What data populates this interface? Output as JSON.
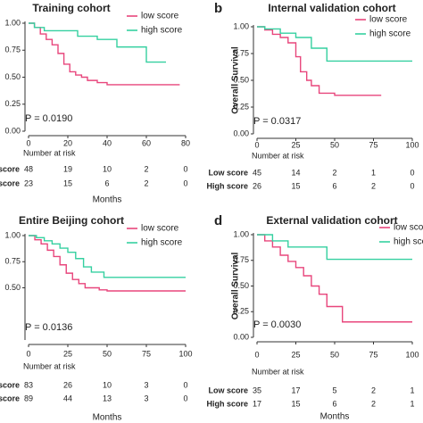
{
  "chart_data": [
    {
      "type": "line",
      "step": true,
      "title": "Training cohort",
      "p_value": "P = 0.0190",
      "xlabel": "Months",
      "xlim": [
        0,
        80
      ],
      "xticks": [
        0,
        20,
        40,
        60,
        80
      ],
      "ylim": [
        0,
        1
      ],
      "yticks": [
        {
          "value": 0,
          "label": "0.00"
        },
        {
          "value": 0.25,
          "label": "0.25"
        },
        {
          "value": 0.5,
          "label": "0.50"
        },
        {
          "value": 0.75,
          "label": "0.75"
        },
        {
          "value": 1,
          "label": "1.00"
        }
      ],
      "series": [
        {
          "name": "low score",
          "color": "#e8467c",
          "x": [
            0,
            3,
            6,
            9,
            12,
            15,
            18,
            21,
            24,
            27,
            30,
            35,
            40,
            77
          ],
          "values": [
            1,
            0.96,
            0.9,
            0.85,
            0.8,
            0.72,
            0.62,
            0.55,
            0.52,
            0.5,
            0.47,
            0.45,
            0.43,
            0.43
          ]
        },
        {
          "name": "high score",
          "color": "#35d0a0",
          "x": [
            0,
            3,
            8,
            25,
            35,
            45,
            60,
            70
          ],
          "values": [
            1,
            0.96,
            0.93,
            0.88,
            0.85,
            0.78,
            0.64,
            0.64
          ]
        }
      ],
      "risk_table": {
        "title": "Number at risk",
        "rows": [
          {
            "name": "Low score",
            "values": [
              48,
              19,
              10,
              2,
              0
            ]
          },
          {
            "name": "High score",
            "values": [
              23,
              15,
              6,
              2,
              0
            ]
          }
        ]
      }
    },
    {
      "type": "line",
      "step": true,
      "label": "b",
      "title": "Internal validation cohort",
      "ylabel": "Overall Survival",
      "p_value": "P = 0.0317",
      "xlim": [
        0,
        100
      ],
      "xticks": [
        0,
        25,
        50,
        75,
        100
      ],
      "ylim": [
        0,
        1
      ],
      "yticks": [
        {
          "value": 0,
          "label": "0.00"
        },
        {
          "value": 0.25,
          "label": "0.25"
        },
        {
          "value": 0.5,
          "label": "0.50"
        },
        {
          "value": 0.75,
          "label": "0.75"
        },
        {
          "value": 1,
          "label": "1.00"
        }
      ],
      "series": [
        {
          "name": "low score",
          "color": "#e8467c",
          "x": [
            0,
            5,
            10,
            15,
            20,
            25,
            28,
            32,
            35,
            40,
            50,
            80
          ],
          "values": [
            1,
            0.97,
            0.93,
            0.9,
            0.85,
            0.72,
            0.58,
            0.5,
            0.45,
            0.38,
            0.36,
            0.36
          ]
        },
        {
          "name": "high score",
          "color": "#35d0a0",
          "x": [
            0,
            5,
            15,
            25,
            35,
            45,
            100
          ],
          "values": [
            1,
            0.98,
            0.94,
            0.9,
            0.8,
            0.68,
            0.68
          ]
        }
      ],
      "risk_table": {
        "title": "Number at risk",
        "rows": [
          {
            "name": "Low score",
            "values": [
              45,
              14,
              2,
              1,
              0
            ]
          },
          {
            "name": "High score",
            "values": [
              26,
              15,
              6,
              2,
              0
            ]
          }
        ]
      }
    },
    {
      "type": "line",
      "step": true,
      "title": "Entire Beijing cohort",
      "p_value": "P = 0.0136",
      "xlabel": "Months",
      "xlim": [
        0,
        100
      ],
      "xticks": [
        0,
        25,
        50,
        75,
        100
      ],
      "ylim": [
        0,
        1
      ],
      "yticks": [
        {
          "value": 0.5,
          "label": "0.50"
        },
        {
          "value": 0.75,
          "label": "0.75"
        },
        {
          "value": 1,
          "label": "1.00"
        }
      ],
      "series": [
        {
          "name": "low score",
          "color": "#e8467c",
          "x": [
            0,
            4,
            8,
            12,
            16,
            20,
            24,
            28,
            32,
            36,
            45,
            50,
            100
          ],
          "values": [
            1,
            0.96,
            0.92,
            0.86,
            0.8,
            0.72,
            0.64,
            0.58,
            0.54,
            0.5,
            0.48,
            0.47,
            0.47
          ]
        },
        {
          "name": "high score",
          "color": "#35d0a0",
          "x": [
            0,
            5,
            10,
            15,
            20,
            25,
            30,
            35,
            40,
            48,
            100
          ],
          "values": [
            1,
            0.98,
            0.95,
            0.92,
            0.88,
            0.84,
            0.78,
            0.7,
            0.65,
            0.6,
            0.6
          ]
        }
      ],
      "risk_table": {
        "title": "Number at risk",
        "rows": [
          {
            "name": "Low score",
            "values": [
              83,
              26,
              10,
              3,
              0
            ]
          },
          {
            "name": "High score",
            "values": [
              89,
              44,
              13,
              3,
              0
            ]
          }
        ]
      }
    },
    {
      "type": "line",
      "step": true,
      "label": "d",
      "title": "External validation cohort",
      "ylabel": "Overall Survival",
      "p_value": "P = 0.0030",
      "xlabel": "Months",
      "xlim": [
        0,
        100
      ],
      "xticks": [
        0,
        25,
        50,
        75,
        100
      ],
      "ylim": [
        0,
        1
      ],
      "yticks": [
        {
          "value": 0,
          "label": "0.00"
        },
        {
          "value": 0.25,
          "label": "0.25"
        },
        {
          "value": 0.5,
          "label": "0.50"
        },
        {
          "value": 0.75,
          "label": "0.75"
        },
        {
          "value": 1,
          "label": "1.00"
        }
      ],
      "series": [
        {
          "name": "low score",
          "color": "#e8467c",
          "x": [
            0,
            5,
            10,
            15,
            20,
            25,
            30,
            35,
            40,
            45,
            55,
            100
          ],
          "values": [
            1,
            0.94,
            0.88,
            0.8,
            0.74,
            0.68,
            0.6,
            0.5,
            0.42,
            0.3,
            0.15,
            0.15
          ]
        },
        {
          "name": "high score",
          "color": "#35d0a0",
          "x": [
            0,
            10,
            20,
            45,
            100
          ],
          "values": [
            1,
            0.94,
            0.88,
            0.76,
            0.76
          ]
        }
      ],
      "risk_table": {
        "title": "Number at risk",
        "rows": [
          {
            "name": "Low score",
            "values": [
              35,
              17,
              5,
              2,
              1
            ]
          },
          {
            "name": "High score",
            "values": [
              17,
              15,
              6,
              2,
              1
            ]
          }
        ]
      }
    }
  ]
}
